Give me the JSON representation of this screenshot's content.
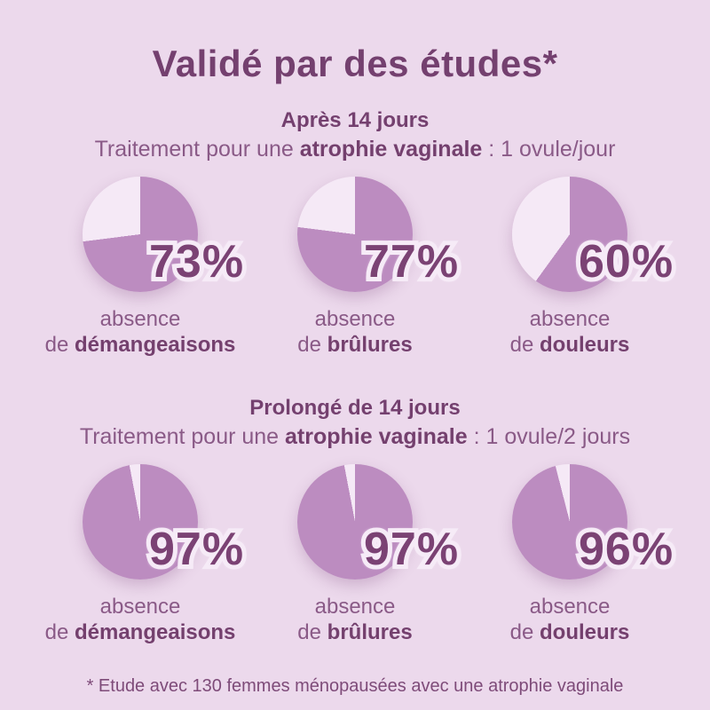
{
  "title": "Validé par des études*",
  "footnote": "* Etude avec 130 femmes ménopausées avec une atrophie vaginale",
  "colors": {
    "background": "#ecd9ec",
    "pie_fill": "#bc8cc0",
    "pie_rest": "#f5e9f6",
    "title_text": "#74406f",
    "regular_text": "#8a5a87",
    "bold_text": "#74406e",
    "percent_text": "#7b4274",
    "percent_stroke": "#f6ebf7"
  },
  "sections": [
    {
      "heading": "Après 14 jours",
      "subtitle_prefix": "Traitement pour une ",
      "subtitle_bold": "atrophie vaginale",
      "subtitle_suffix": " : 1 ovule/jour",
      "charts": [
        {
          "value": 73,
          "percent": "73%",
          "label_line1": "absence",
          "label_prefix": "de ",
          "label_bold": "démangeaisons"
        },
        {
          "value": 77,
          "percent": "77%",
          "label_line1": "absence",
          "label_prefix": "de ",
          "label_bold": "brûlures"
        },
        {
          "value": 60,
          "percent": "60%",
          "label_line1": "absence",
          "label_prefix": "de ",
          "label_bold": "douleurs"
        }
      ]
    },
    {
      "heading": "Prolongé de 14 jours",
      "subtitle_prefix": "Traitement pour une ",
      "subtitle_bold": "atrophie vaginale",
      "subtitle_suffix": " : 1 ovule/2 jours",
      "charts": [
        {
          "value": 97,
          "percent": "97%",
          "label_line1": "absence",
          "label_prefix": "de ",
          "label_bold": "démangeaisons"
        },
        {
          "value": 97,
          "percent": "97%",
          "label_line1": "absence",
          "label_prefix": "de ",
          "label_bold": "brûlures"
        },
        {
          "value": 96,
          "percent": "96%",
          "label_line1": "absence",
          "label_prefix": "de ",
          "label_bold": "douleurs"
        }
      ]
    }
  ],
  "chart_data": [
    {
      "type": "pie",
      "title": "Après 14 jours — absence de démangeaisons",
      "labels": [
        "absence de démangeaisons",
        "autre"
      ],
      "values": [
        73,
        27
      ],
      "colors": [
        "#bc8cc0",
        "#f5e9f6"
      ],
      "start_angle": "12 o'clock, clockwise",
      "annotation": "73%"
    },
    {
      "type": "pie",
      "title": "Après 14 jours — absence de brûlures",
      "labels": [
        "absence de brûlures",
        "autre"
      ],
      "values": [
        77,
        23
      ],
      "colors": [
        "#bc8cc0",
        "#f5e9f6"
      ],
      "start_angle": "12 o'clock, clockwise",
      "annotation": "77%"
    },
    {
      "type": "pie",
      "title": "Après 14 jours — absence de douleurs",
      "labels": [
        "absence de douleurs",
        "autre"
      ],
      "values": [
        60,
        40
      ],
      "colors": [
        "#bc8cc0",
        "#f5e9f6"
      ],
      "start_angle": "12 o'clock, clockwise",
      "annotation": "60%"
    },
    {
      "type": "pie",
      "title": "Prolongé de 14 jours — absence de démangeaisons",
      "labels": [
        "absence de démangeaisons",
        "autre"
      ],
      "values": [
        97,
        3
      ],
      "colors": [
        "#bc8cc0",
        "#f5e9f6"
      ],
      "start_angle": "12 o'clock, clockwise",
      "annotation": "97%"
    },
    {
      "type": "pie",
      "title": "Prolongé de 14 jours — absence de brûlures",
      "labels": [
        "absence de brûlures",
        "autre"
      ],
      "values": [
        97,
        3
      ],
      "colors": [
        "#bc8cc0",
        "#f5e9f6"
      ],
      "start_angle": "12 o'clock, clockwise",
      "annotation": "97%"
    },
    {
      "type": "pie",
      "title": "Prolongé de 14 jours — absence de douleurs",
      "labels": [
        "absence de douleurs",
        "autre"
      ],
      "values": [
        96,
        4
      ],
      "colors": [
        "#bc8cc0",
        "#f5e9f6"
      ],
      "start_angle": "12 o'clock, clockwise",
      "annotation": "96%"
    }
  ]
}
